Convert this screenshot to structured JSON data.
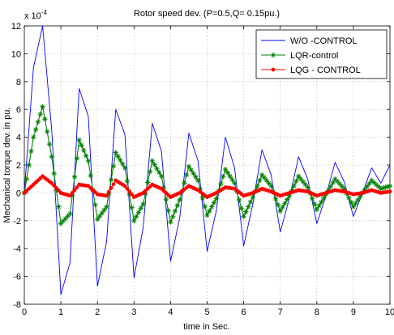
{
  "chart_data": {
    "type": "line",
    "title": "Rotor speed dev. (P=0.5,Q= 0.15pu.)",
    "xlabel": "time in Sec.",
    "ylabel": "Mechanical torque dev. in pu.",
    "y_exponent_label": "x 10",
    "y_exponent_power": "-4",
    "xlim": [
      0,
      10
    ],
    "ylim": [
      -8,
      12
    ],
    "x_ticks": [
      "0",
      "1",
      "2",
      "3",
      "4",
      "5",
      "6",
      "7",
      "8",
      "9",
      "10"
    ],
    "y_ticks": [
      "-8",
      "-6",
      "-4",
      "-2",
      "0",
      "2",
      "4",
      "6",
      "8",
      "10",
      "12"
    ],
    "grid": true,
    "legend_position": "top-right",
    "series": [
      {
        "name": "W/O -CONTROL",
        "color": "#0000ff",
        "marker": "none",
        "x": [
          0.0,
          0.25,
          0.5,
          0.75,
          1.0,
          1.25,
          1.5,
          1.75,
          2.0,
          2.25,
          2.5,
          2.75,
          3.0,
          3.25,
          3.5,
          3.75,
          4.0,
          4.25,
          4.5,
          4.75,
          5.0,
          5.25,
          5.5,
          5.75,
          6.0,
          6.25,
          6.5,
          6.75,
          7.0,
          7.25,
          7.5,
          7.75,
          8.0,
          8.25,
          8.5,
          8.75,
          9.0,
          9.25,
          9.5,
          9.75,
          10.0
        ],
        "values": [
          0.0,
          9.0,
          12.0,
          4.5,
          -7.3,
          -5.0,
          7.5,
          5.5,
          -6.7,
          -3.5,
          6.0,
          4.2,
          -6.1,
          -2.5,
          5.0,
          3.0,
          -4.9,
          -1.8,
          4.3,
          2.3,
          -4.2,
          -1.3,
          4.0,
          1.8,
          -3.8,
          -0.8,
          3.1,
          1.3,
          -2.8,
          -0.4,
          2.6,
          1.0,
          -2.2,
          -0.2,
          2.2,
          0.8,
          -1.7,
          0.0,
          1.8,
          0.7,
          2.0
        ]
      },
      {
        "name": "LQR-control",
        "color": "#008000",
        "marker": "star",
        "x": [
          0.0,
          0.25,
          0.5,
          0.75,
          1.0,
          1.25,
          1.5,
          1.75,
          2.0,
          2.25,
          2.5,
          2.75,
          3.0,
          3.25,
          3.5,
          3.75,
          4.0,
          4.25,
          4.5,
          4.75,
          5.0,
          5.25,
          5.5,
          5.75,
          6.0,
          6.25,
          6.5,
          6.75,
          7.0,
          7.25,
          7.5,
          7.75,
          8.0,
          8.25,
          8.5,
          8.75,
          9.0,
          9.25,
          9.5,
          9.75,
          10.0
        ],
        "values": [
          0.0,
          4.0,
          6.2,
          2.6,
          -2.2,
          -1.5,
          3.8,
          2.3,
          -1.9,
          -1.0,
          2.9,
          1.8,
          -2.0,
          -0.8,
          2.3,
          1.2,
          -2.1,
          -0.5,
          1.9,
          0.9,
          -1.6,
          -0.4,
          1.7,
          0.7,
          -1.7,
          -0.3,
          1.3,
          0.5,
          -1.3,
          -0.2,
          1.2,
          0.4,
          -1.2,
          -0.1,
          1.0,
          0.3,
          -1.0,
          0.0,
          0.9,
          0.3,
          0.5
        ]
      },
      {
        "name": "LQG - CONTROL",
        "color": "#ff0000",
        "marker": "dot",
        "x": [
          0.0,
          0.25,
          0.5,
          0.75,
          1.0,
          1.25,
          1.5,
          1.75,
          2.0,
          2.25,
          2.5,
          2.75,
          3.0,
          3.25,
          3.5,
          3.75,
          4.0,
          4.25,
          4.5,
          4.75,
          5.0,
          5.25,
          5.5,
          5.75,
          6.0,
          6.25,
          6.5,
          6.75,
          7.0,
          7.25,
          7.5,
          7.75,
          8.0,
          8.25,
          8.5,
          8.75,
          9.0,
          9.25,
          9.5,
          9.75,
          10.0
        ],
        "values": [
          0.0,
          0.6,
          1.2,
          0.7,
          0.0,
          -0.2,
          0.6,
          0.5,
          -0.1,
          -0.2,
          0.9,
          0.5,
          -0.3,
          0.0,
          0.6,
          0.3,
          -0.3,
          0.0,
          0.5,
          0.2,
          -0.3,
          0.0,
          0.4,
          0.3,
          -0.2,
          0.0,
          0.3,
          0.1,
          -0.2,
          0.0,
          0.2,
          0.1,
          -0.2,
          0.0,
          0.2,
          0.1,
          -0.1,
          0.0,
          0.2,
          0.0,
          0.1
        ]
      }
    ]
  }
}
